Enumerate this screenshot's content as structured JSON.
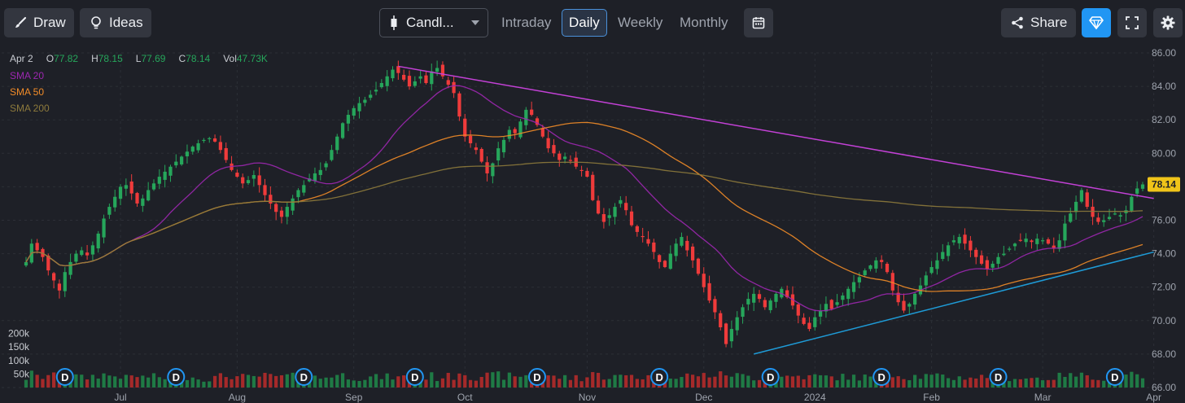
{
  "toolbar": {
    "draw_label": "Draw",
    "ideas_label": "Ideas",
    "chart_type": "Candl...",
    "timeframes": [
      "Intraday",
      "Daily",
      "Weekly",
      "Monthly"
    ],
    "active_timeframe": "Daily",
    "share_label": "Share"
  },
  "ohlc": {
    "date": "Apr 2",
    "o_label": "O",
    "o": "77.82",
    "h_label": "H",
    "h": "78.15",
    "l_label": "L",
    "l": "77.69",
    "c_label": "C",
    "c": "78.14",
    "vol_label": "Vol",
    "vol": "47.73K"
  },
  "legend": [
    {
      "label": "SMA 20",
      "color": "#9c27b0"
    },
    {
      "label": "SMA 50",
      "color": "#f28c28"
    },
    {
      "label": "SMA 200",
      "color": "#8d7a3c"
    }
  ],
  "colors": {
    "up": "#26a65b",
    "down": "#ef3b3b",
    "vol_up": "#1f7a45",
    "vol_down": "#a52a2a",
    "trend_down": "#c341d6",
    "trend_up": "#1e9bd7",
    "price_tag": "#f0c419",
    "accent": "#2196f3"
  },
  "chart_data": {
    "type": "candlestick",
    "title": "",
    "last_price": "78.14",
    "ylim": [
      66,
      86
    ],
    "y_ticks": [
      "86.00",
      "84.00",
      "82.00",
      "80.00",
      "78.00",
      "76.00",
      "74.00",
      "72.00",
      "70.00",
      "68.00",
      "66.00"
    ],
    "volume_ticks": [
      "200k",
      "150k",
      "100k",
      "50k"
    ],
    "volume_ylim": [
      0,
      220
    ],
    "x_ticks": [
      {
        "label": "Jul",
        "index": 17
      },
      {
        "label": "Aug",
        "index": 38
      },
      {
        "label": "Sep",
        "index": 59
      },
      {
        "label": "Oct",
        "index": 79
      },
      {
        "label": "Nov",
        "index": 101
      },
      {
        "label": "Dec",
        "index": 122
      },
      {
        "label": "2024",
        "index": 142
      },
      {
        "label": "Feb",
        "index": 163
      },
      {
        "label": "Mar",
        "index": 183
      },
      {
        "label": "Apr",
        "index": 203
      }
    ],
    "dividend_markers": [
      {
        "label": "D",
        "index": 7
      },
      {
        "label": "D",
        "index": 27
      },
      {
        "label": "D",
        "index": 50
      },
      {
        "label": "D",
        "index": 70
      },
      {
        "label": "D",
        "index": 92
      },
      {
        "label": "D",
        "index": 114
      },
      {
        "label": "D",
        "index": 134
      },
      {
        "label": "D",
        "index": 154
      },
      {
        "label": "D",
        "index": 175
      },
      {
        "label": "D",
        "index": 196
      }
    ],
    "closes": [
      73.5,
      74.6,
      74.2,
      73.8,
      73.0,
      72.4,
      71.8,
      72.9,
      73.5,
      74.0,
      74.2,
      73.9,
      74.5,
      75.2,
      76.1,
      76.8,
      77.4,
      78.0,
      78.1,
      77.6,
      77.0,
      77.3,
      77.8,
      78.2,
      78.6,
      78.9,
      79.2,
      79.5,
      79.8,
      80.1,
      80.4,
      80.6,
      80.8,
      80.9,
      80.7,
      80.2,
      79.6,
      79.0,
      78.6,
      78.2,
      78.4,
      78.7,
      78.1,
      77.5,
      77.0,
      76.5,
      76.2,
      76.8,
      77.3,
      77.8,
      78.1,
      78.5,
      78.8,
      79.0,
      79.4,
      80.2,
      81.0,
      81.8,
      82.3,
      82.7,
      83.0,
      83.2,
      83.5,
      83.8,
      84.2,
      84.6,
      85.0,
      84.8,
      84.4,
      84.0,
      84.3,
      84.6,
      84.2,
      84.9,
      85.1,
      84.6,
      84.1,
      83.6,
      82.2,
      81.0,
      80.6,
      80.2,
      79.5,
      78.8,
      79.4,
      80.3,
      80.8,
      81.4,
      81.2,
      81.9,
      82.6,
      82.3,
      81.7,
      81.0,
      80.3,
      80.0,
      79.6,
      79.8,
      79.6,
      79.2,
      79.0,
      78.6,
      77.2,
      76.4,
      75.9,
      76.3,
      76.8,
      77.2,
      76.6,
      75.7,
      75.3,
      75.0,
      74.6,
      74.1,
      73.5,
      73.2,
      74.0,
      74.6,
      75.0,
      74.2,
      73.6,
      72.8,
      72.0,
      71.2,
      70.5,
      69.6,
      68.6,
      69.5,
      70.2,
      70.8,
      71.3,
      71.6,
      71.3,
      70.8,
      71.2,
      71.6,
      71.9,
      71.4,
      70.9,
      70.3,
      69.8,
      69.5,
      70.2,
      70.6,
      71.0,
      70.7,
      71.1,
      71.5,
      71.9,
      72.3,
      72.6,
      73.0,
      73.3,
      73.6,
      73.5,
      72.9,
      71.8,
      71.1,
      70.6,
      71.0,
      71.6,
      72.1,
      72.7,
      73.2,
      73.6,
      74.1,
      74.5,
      74.8,
      75.0,
      74.6,
      74.2,
      73.8,
      73.4,
      73.1,
      73.4,
      73.8,
      74.0,
      74.3,
      74.6,
      74.8,
      74.9,
      74.7,
      74.9,
      74.8,
      74.6,
      74.3,
      74.8,
      75.8,
      76.4,
      77.1,
      77.8,
      76.8,
      76.2,
      75.9,
      76.0,
      76.2,
      76.4,
      76.3,
      76.6,
      77.4,
      77.9,
      78.14
    ],
    "trendlines": [
      {
        "name": "descending resistance",
        "from": {
          "index": 67,
          "value": 85.2
        },
        "to": {
          "index": 203,
          "value": 77.3
        }
      },
      {
        "name": "ascending support",
        "from": {
          "index": 131,
          "value": 68.0
        },
        "to": {
          "index": 203,
          "value": 74.1
        }
      }
    ],
    "indicators": [
      "SMA 20",
      "SMA 50",
      "SMA 200"
    ]
  }
}
